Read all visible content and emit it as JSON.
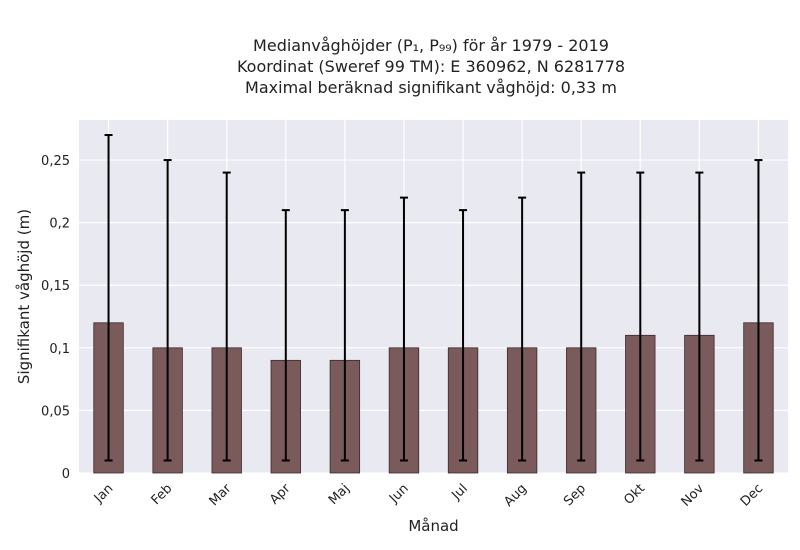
{
  "chart_data": {
    "type": "bar",
    "title_lines": [
      "Medianvåghöjder (P₁, P₉₉) för år 1979 - 2019",
      "Koordinat (Sweref 99 TM): E 360962, N 6281778",
      "Maximal beräknad signifikant våghöjd: 0,33 m"
    ],
    "xlabel": "Månad",
    "ylabel": "Signifikant våghöjd (m)",
    "categories": [
      "Jan",
      "Feb",
      "Mar",
      "Apr",
      "Maj",
      "Jun",
      "Jul",
      "Aug",
      "Sep",
      "Okt",
      "Nov",
      "Dec"
    ],
    "values": [
      0.12,
      0.1,
      0.1,
      0.09,
      0.09,
      0.1,
      0.1,
      0.1,
      0.1,
      0.11,
      0.11,
      0.12
    ],
    "p1": [
      0.01,
      0.01,
      0.01,
      0.01,
      0.01,
      0.01,
      0.01,
      0.01,
      0.01,
      0.01,
      0.01,
      0.01
    ],
    "p99": [
      0.27,
      0.25,
      0.24,
      0.21,
      0.21,
      0.22,
      0.21,
      0.22,
      0.24,
      0.24,
      0.24,
      0.25
    ],
    "ylim": [
      0,
      0.282
    ],
    "yticks": [
      0,
      0.05,
      0.1,
      0.15,
      0.2,
      0.25
    ],
    "ytick_labels": [
      "0",
      "0,05",
      "0,1",
      "0,15",
      "0,2",
      "0,25"
    ],
    "grid": true,
    "colors": {
      "bar": "#7a5a5a",
      "bar_edge": "#3a2a2a",
      "errorbar": "#000000",
      "plot_bg": "#e9e9f1",
      "grid": "#ffffff"
    }
  }
}
